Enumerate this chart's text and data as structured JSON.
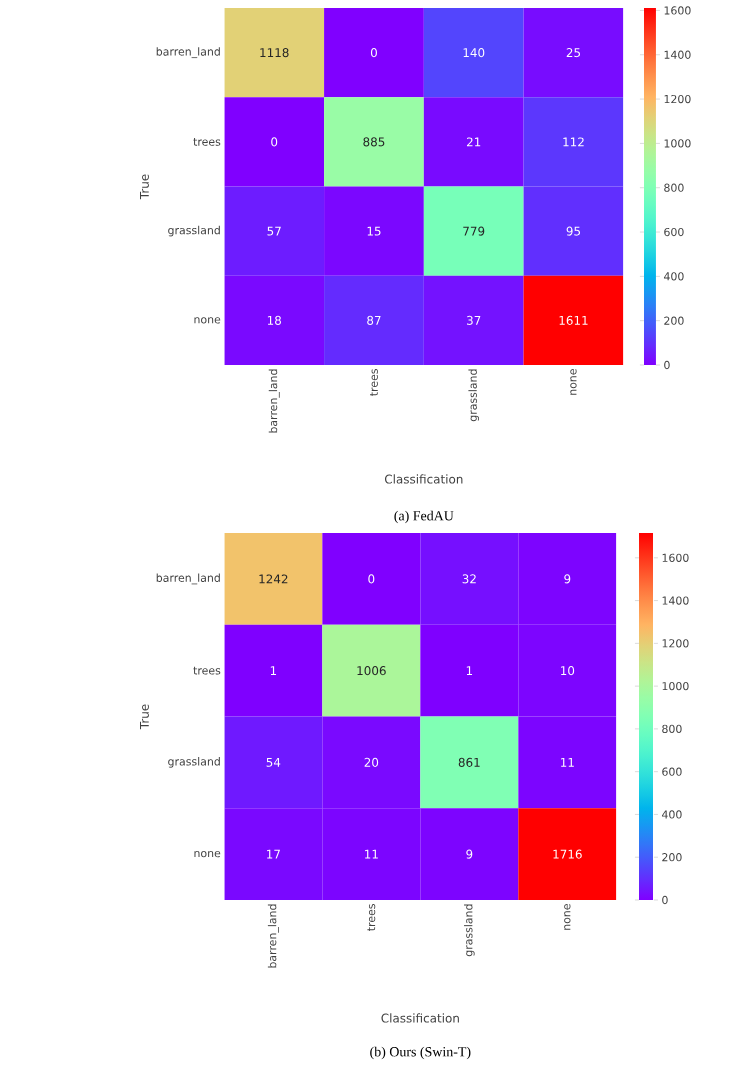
{
  "chart_data": [
    {
      "type": "heatmap",
      "title": "(a) FedAU",
      "xlabel": "Classification",
      "ylabel": "True",
      "categories": [
        "barren_land",
        "trees",
        "grassland",
        "none"
      ],
      "y_categories": [
        "barren_land",
        "trees",
        "grassland",
        "none"
      ],
      "cells": [
        [
          1118,
          0,
          140,
          25
        ],
        [
          0,
          885,
          21,
          112
        ],
        [
          57,
          15,
          779,
          95
        ],
        [
          18,
          87,
          37,
          1611
        ]
      ],
      "data_labels": true,
      "clim": [
        0,
        1611
      ],
      "cticks": [
        0,
        200,
        400,
        600,
        800,
        1000,
        1200,
        1400,
        1600
      ]
    },
    {
      "type": "heatmap",
      "title": "(b) Ours (Swin-T)",
      "xlabel": "Classification",
      "ylabel": "True",
      "categories": [
        "barren_land",
        "trees",
        "grassland",
        "none"
      ],
      "y_categories": [
        "barren_land",
        "trees",
        "grassland",
        "none"
      ],
      "cells": [
        [
          1242,
          0,
          32,
          9
        ],
        [
          1,
          1006,
          1,
          10
        ],
        [
          54,
          20,
          861,
          11
        ],
        [
          17,
          11,
          9,
          1716
        ]
      ],
      "data_labels": true,
      "clim": [
        0,
        1716
      ],
      "cticks": [
        0,
        200,
        400,
        600,
        800,
        1000,
        1200,
        1400,
        1600
      ]
    }
  ]
}
